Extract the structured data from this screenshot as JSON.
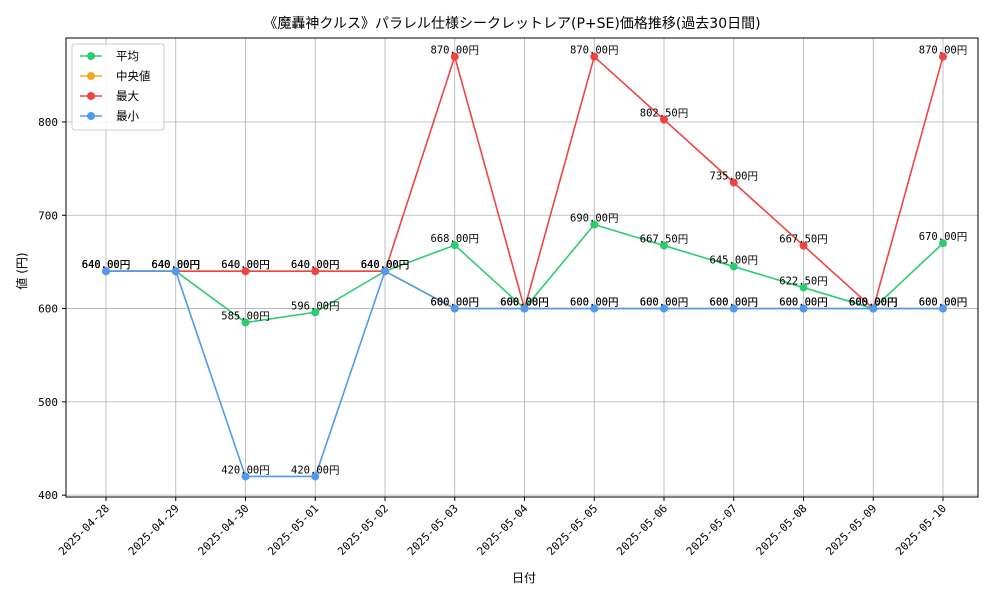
{
  "chart_data": {
    "type": "line",
    "title": "《魔轟神クルス》パラレル仕様シークレットレア(P+SE)価格推移(過去30日間)",
    "xlabel": "日付",
    "ylabel": "値 (円)",
    "ylim": [
      398,
      890
    ],
    "yticks": [
      400,
      500,
      600,
      700,
      800
    ],
    "grid": true,
    "legend_position": "top-left",
    "label_suffix": "円",
    "categories": [
      "2025-04-28",
      "2025-04-29",
      "2025-04-30",
      "2025-05-01",
      "2025-05-02",
      "2025-05-03",
      "2025-05-04",
      "2025-05-05",
      "2025-05-06",
      "2025-05-07",
      "2025-05-08",
      "2025-05-09",
      "2025-05-10"
    ],
    "series": [
      {
        "name": "平均",
        "color": "#2ecc71",
        "values": [
          640,
          640,
          585,
          596,
          640,
          668,
          600,
          690,
          667.5,
          645,
          622.5,
          600,
          670
        ]
      },
      {
        "name": "中央値",
        "color": "#f5a623",
        "values": [
          640,
          640,
          640,
          640,
          640,
          600,
          600,
          600,
          600,
          600,
          600,
          600,
          600
        ]
      },
      {
        "name": "最大",
        "color": "#ef4444",
        "values": [
          640,
          640,
          640,
          640,
          640,
          870,
          600,
          870,
          802.5,
          735,
          667.5,
          600,
          870
        ]
      },
      {
        "name": "最小",
        "color": "#4e9af1",
        "values": [
          640,
          640,
          420,
          420,
          640,
          600,
          600,
          600,
          600,
          600,
          600,
          600,
          600
        ]
      }
    ]
  }
}
